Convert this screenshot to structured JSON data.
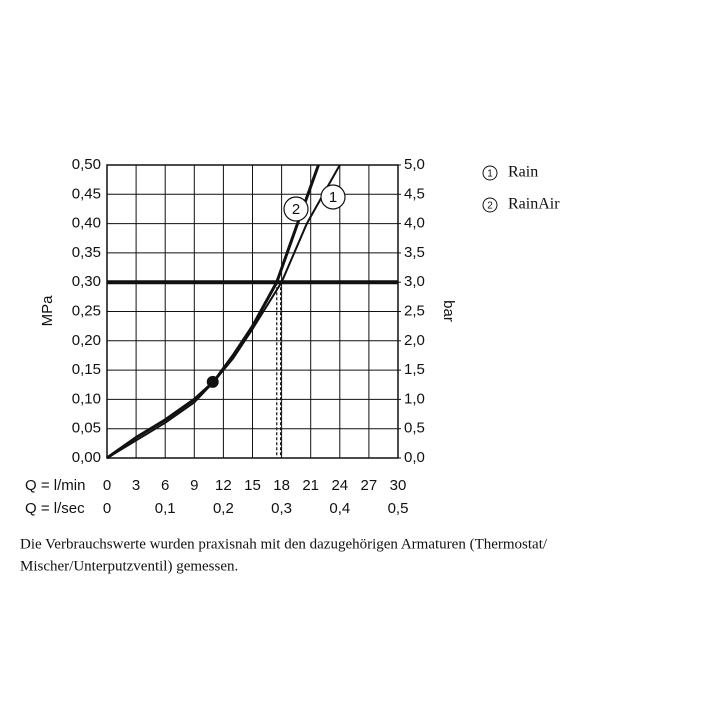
{
  "chart_data": {
    "type": "line",
    "y_label": "MPa",
    "y2_label": "bar",
    "x_label": "Q = l/min",
    "x2_label": "Q = l/sec",
    "xlim": [
      0,
      30
    ],
    "xticks": [
      0,
      3,
      6,
      9,
      12,
      15,
      18,
      21,
      24,
      27,
      30
    ],
    "x2lim": [
      0,
      0.5
    ],
    "x2ticks": [
      {
        "value": 0,
        "label": "0"
      },
      {
        "value": 0.1,
        "label": "0,1"
      },
      {
        "value": 0.2,
        "label": "0,2"
      },
      {
        "value": 0.3,
        "label": "0,3"
      },
      {
        "value": 0.4,
        "label": "0,4"
      },
      {
        "value": 0.5,
        "label": "0,5"
      }
    ],
    "ylim": [
      0,
      0.5
    ],
    "yticks": [
      {
        "value": 0,
        "label": "0,00"
      },
      {
        "value": 0.05,
        "label": "0,05"
      },
      {
        "value": 0.1,
        "label": "0,10"
      },
      {
        "value": 0.15,
        "label": "0,15"
      },
      {
        "value": 0.2,
        "label": "0,20"
      },
      {
        "value": 0.25,
        "label": "0,25"
      },
      {
        "value": 0.3,
        "label": "0,30"
      },
      {
        "value": 0.35,
        "label": "0,35"
      },
      {
        "value": 0.4,
        "label": "0,40"
      },
      {
        "value": 0.45,
        "label": "0,45"
      },
      {
        "value": 0.5,
        "label": "0,50"
      }
    ],
    "y2lim": [
      0,
      5
    ],
    "y2ticks": [
      {
        "value": 0,
        "label": "0,0"
      },
      {
        "value": 0.5,
        "label": "0,5"
      },
      {
        "value": 1,
        "label": "1,0"
      },
      {
        "value": 1.5,
        "label": "1,5"
      },
      {
        "value": 2,
        "label": "2,0"
      },
      {
        "value": 2.5,
        "label": "2,5"
      },
      {
        "value": 3,
        "label": "3,0"
      },
      {
        "value": 3.5,
        "label": "3,5"
      },
      {
        "value": 4,
        "label": "4,0"
      },
      {
        "value": 4.5,
        "label": "4,5"
      },
      {
        "value": 5,
        "label": "5,0"
      }
    ],
    "grid": true,
    "color": "#111111",
    "reference_y": 0.3,
    "reference_x": [
      17.5,
      17.9
    ],
    "highlight_point": {
      "x": 10.9,
      "y": 0.13
    },
    "series": [
      {
        "name": "Rain",
        "label": "1",
        "x": [
          0,
          3,
          6,
          9,
          11,
          13,
          15,
          18,
          20.6,
          22.3,
          24
        ],
        "values": [
          0,
          0.03,
          0.06,
          0.095,
          0.13,
          0.17,
          0.22,
          0.3,
          0.4,
          0.45,
          0.5
        ]
      },
      {
        "name": "RainAir",
        "label": "2",
        "x": [
          0,
          3,
          6,
          9,
          11,
          13,
          15,
          17.5,
          19,
          20.5,
          21.8
        ],
        "values": [
          0,
          0.035,
          0.065,
          0.1,
          0.13,
          0.175,
          0.225,
          0.3,
          0.37,
          0.44,
          0.5
        ]
      }
    ],
    "caption": [
      "Die Verbrauchswerte wurden praxisnah mit den dazugehörigen Armaturen (Thermostat/",
      "Mischer/Unterputzventil) gemessen."
    ]
  }
}
